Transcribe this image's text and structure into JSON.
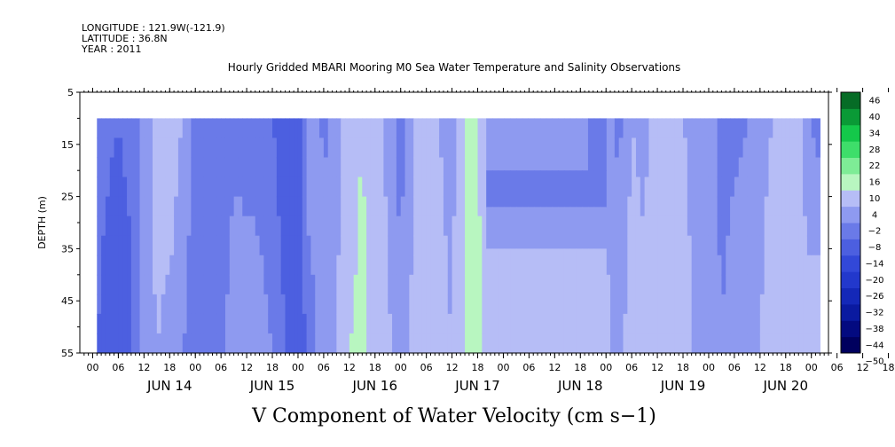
{
  "header": {
    "longitude": "LONGITUDE : 121.9W(-121.9)",
    "latitude": "LATITUDE : 36.8N",
    "year": "YEAR : 2011"
  },
  "chart_data": {
    "type": "heatmap",
    "title": "Hourly Gridded MBARI Mooring M0 Sea Water Temperature and Salinity Observations",
    "xlabel": "V Component of Water Velocity (cm s−1)",
    "ylabel": "DEPTH (m)",
    "ylim": [
      5,
      55
    ],
    "y_ticks": [
      "5",
      "15",
      "25",
      "35",
      "45",
      "55"
    ],
    "x_hour_ticks": [
      "00",
      "06",
      "12",
      "18",
      "00",
      "06",
      "12",
      "18",
      "00",
      "06",
      "12",
      "18",
      "00",
      "06",
      "12",
      "18",
      "00",
      "06",
      "12",
      "18",
      "00",
      "06",
      "12",
      "18",
      "00",
      "06",
      "12",
      "18",
      "00",
      "06",
      "12",
      "18",
      "00",
      "06",
      "12",
      "18"
    ],
    "x_day_labels": [
      "JUN 14",
      "JUN 15",
      "JUN 16",
      "JUN 17",
      "JUN 18",
      "JUN 19",
      "JUN 20"
    ],
    "data_depth_range": [
      10,
      55
    ],
    "colorbar_levels": [
      "46",
      "40",
      "34",
      "28",
      "22",
      "16",
      "10",
      "4",
      "−2",
      "−8",
      "−14",
      "−20",
      "−26",
      "−32",
      "−38",
      "−44",
      "−50"
    ],
    "colors": {
      "strong_neg": "#1a2ab8",
      "neg": "#8a96e8",
      "weak_neg": "#b2b8f4",
      "weak_pos": "#a8f4b0",
      "pos": "#5ae27a",
      "strong_pos": "#0fd24a"
    },
    "profiles": [
      {
        "date": "2011-06-13T19:00",
        "surface": -6,
        "bottom": -8
      },
      {
        "date": "2011-06-14T00:00",
        "surface": -8,
        "bottom": -12
      },
      {
        "date": "2011-06-14T03:00",
        "surface": -6,
        "bottom": -10
      },
      {
        "date": "2011-06-14T06:00",
        "surface": 0,
        "bottom": 2
      },
      {
        "date": "2011-06-14T09:00",
        "surface": 6,
        "bottom": 4
      },
      {
        "date": "2011-06-14T12:00",
        "surface": 8,
        "bottom": 2
      },
      {
        "date": "2011-06-14T15:00",
        "surface": 4,
        "bottom": -2
      },
      {
        "date": "2011-06-14T18:00",
        "surface": -4,
        "bottom": -6
      },
      {
        "date": "2011-06-14T21:00",
        "surface": -8,
        "bottom": -6
      },
      {
        "date": "2011-06-15T00:00",
        "surface": -6,
        "bottom": -4
      },
      {
        "date": "2011-06-15T03:00",
        "surface": -4,
        "bottom": 2
      },
      {
        "date": "2011-06-15T06:00",
        "surface": -6,
        "bottom": 4
      },
      {
        "date": "2011-06-15T09:00",
        "surface": -6,
        "bottom": 2
      },
      {
        "date": "2011-06-15T12:00",
        "surface": -8,
        "bottom": -2
      },
      {
        "date": "2011-06-15T15:00",
        "surface": -12,
        "bottom": -8
      },
      {
        "date": "2011-06-15T18:00",
        "surface": -14,
        "bottom": -12
      },
      {
        "date": "2011-06-15T21:00",
        "surface": 6,
        "bottom": -6
      },
      {
        "date": "2011-06-16T00:00",
        "surface": -4,
        "bottom": 2
      },
      {
        "date": "2011-06-16T03:00",
        "surface": 2,
        "bottom": 4
      },
      {
        "date": "2011-06-16T06:00",
        "surface": 6,
        "bottom": 10
      },
      {
        "date": "2011-06-16T09:00",
        "surface": 10,
        "bottom": 12
      },
      {
        "date": "2011-06-16T12:00",
        "surface": 6,
        "bottom": 8
      },
      {
        "date": "2011-06-16T15:00",
        "surface": 2,
        "bottom": 6
      },
      {
        "date": "2011-06-16T18:00",
        "surface": -4,
        "bottom": -2
      },
      {
        "date": "2011-06-16T21:00",
        "surface": 4,
        "bottom": 6
      },
      {
        "date": "2011-06-17T00:00",
        "surface": 6,
        "bottom": 8
      },
      {
        "date": "2011-06-17T03:00",
        "surface": 4,
        "bottom": 6
      },
      {
        "date": "2011-06-17T06:00",
        "surface": 2,
        "bottom": 4
      },
      {
        "date": "2011-06-17T09:00",
        "surface": 10,
        "bottom": 10
      },
      {
        "date": "2011-06-17T12:00",
        "surface": 12,
        "bottom": 12
      },
      {
        "date": "2011-06-17T15:00",
        "surface": -4,
        "bottom": 6
      },
      {
        "date": "2011-06-17T21:00",
        "surface": 2,
        "bottom": 6
      },
      {
        "date": "2011-06-18T03:00",
        "surface": 2,
        "bottom": 6
      },
      {
        "date": "2011-06-18T09:00",
        "surface": -4,
        "bottom": 6
      },
      {
        "date": "2011-06-18T15:00",
        "surface": -4,
        "bottom": 6
      },
      {
        "date": "2011-06-18T18:00",
        "surface": 2,
        "bottom": 6
      },
      {
        "date": "2011-06-18T21:00",
        "surface": -4,
        "bottom": 2
      },
      {
        "date": "2011-06-19T00:00",
        "surface": 4,
        "bottom": 8
      },
      {
        "date": "2011-06-19T03:00",
        "surface": 2,
        "bottom": 6
      },
      {
        "date": "2011-06-19T06:00",
        "surface": 8,
        "bottom": 10
      },
      {
        "date": "2011-06-19T09:00",
        "surface": 6,
        "bottom": 4
      },
      {
        "date": "2011-06-19T12:00",
        "surface": 4,
        "bottom": 8
      },
      {
        "date": "2011-06-19T15:00",
        "surface": 2,
        "bottom": 2
      },
      {
        "date": "2011-06-19T18:00",
        "surface": 0,
        "bottom": 4
      },
      {
        "date": "2011-06-19T21:00",
        "surface": -4,
        "bottom": -2
      },
      {
        "date": "2011-06-20T00:00",
        "surface": -4,
        "bottom": 2
      },
      {
        "date": "2011-06-20T03:00",
        "surface": -2,
        "bottom": 4
      },
      {
        "date": "2011-06-20T06:00",
        "surface": 2,
        "bottom": 4
      },
      {
        "date": "2011-06-20T09:00",
        "surface": 4,
        "bottom": 8
      },
      {
        "date": "2011-06-20T12:00",
        "surface": 10,
        "bottom": 10
      },
      {
        "date": "2011-06-20T15:00",
        "surface": 6,
        "bottom": 6
      },
      {
        "date": "2011-06-20T18:00",
        "surface": -2,
        "bottom": 8
      },
      {
        "date": "2011-06-20T20:00",
        "surface": -6,
        "bottom": 10
      }
    ],
    "gap_region": {
      "start": "2011-06-17T14:00",
      "end": "2011-06-18T18:00",
      "bands": [
        {
          "depth_top": 10,
          "depth_bottom": 20,
          "value_left": 3,
          "value_right": -3
        },
        {
          "depth_top": 20,
          "depth_bottom": 27,
          "value_left": -8,
          "value_right": -4
        },
        {
          "depth_top": 27,
          "depth_bottom": 35,
          "value_left": 2,
          "value_right": 3
        },
        {
          "depth_top": 35,
          "depth_bottom": 55,
          "value_left": 8,
          "value_right": 6
        }
      ]
    }
  }
}
